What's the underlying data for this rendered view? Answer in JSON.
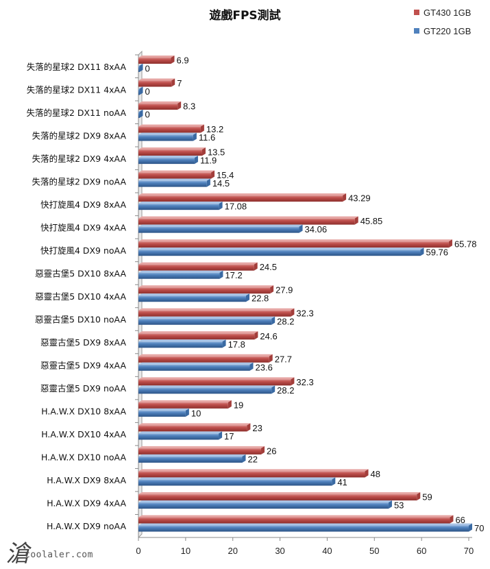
{
  "chart_data": {
    "type": "bar",
    "orientation": "horizontal",
    "title": "遊戲FPS測試",
    "categories": [
      "失落的星球2 DX11 8xAA",
      "失落的星球2 DX11 4xAA",
      "失落的星球2 DX11 noAA",
      "失落的星球2 DX9 8xAA",
      "失落的星球2 DX9 4xAA",
      "失落的星球2 DX9 noAA",
      "快打旋風4 DX9 8xAA",
      "快打旋風4 DX9 4xAA",
      "快打旋風4 DX9 noAA",
      "惡靈古堡5 DX10 8xAA",
      "惡靈古堡5 DX10 4xAA",
      "惡靈古堡5 DX10 noAA",
      "惡靈古堡5 DX9 8xAA",
      "惡靈古堡5 DX9 4xAA",
      "惡靈古堡5 DX9 noAA",
      "H.A.W.X DX10 8xAA",
      "H.A.W.X DX10 4xAA",
      "H.A.W.X DX10 noAA",
      "H.A.W.X DX9 8xAA",
      "H.A.W.X DX9 4xAA",
      "H.A.W.X DX9 noAA"
    ],
    "series": [
      {
        "name": "GT430 1GB",
        "color": "#c0504d",
        "values": [
          6.9,
          7,
          8.3,
          13.2,
          13.5,
          15.4,
          43.29,
          45.85,
          65.78,
          24.5,
          27.9,
          32.3,
          24.6,
          27.7,
          32.3,
          19,
          23,
          26,
          48,
          59,
          66
        ]
      },
      {
        "name": "GT220 1GB",
        "color": "#4f81bd",
        "values": [
          0,
          0,
          0,
          11.6,
          11.9,
          14.5,
          17.08,
          34.06,
          59.76,
          17.2,
          22.8,
          28.2,
          17.8,
          23.6,
          28.2,
          10,
          17,
          22,
          41,
          53,
          70
        ]
      }
    ],
    "xlim": [
      0,
      70
    ],
    "xticks": [
      0,
      10,
      20,
      30,
      40,
      50,
      60,
      70
    ],
    "xlabel": "",
    "ylabel": "",
    "grid": false,
    "legend_position": "top-right",
    "bar_style": "3d cylinder"
  },
  "watermark": {
    "text": "coolaler.com",
    "glyph": "滄"
  }
}
